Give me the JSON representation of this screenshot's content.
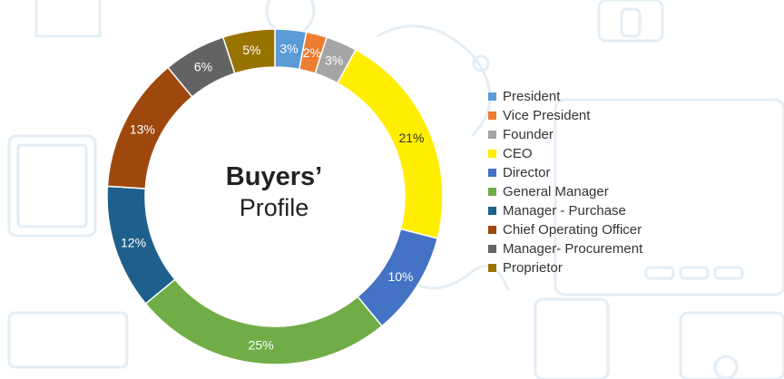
{
  "chart_data": {
    "type": "pie",
    "donut": true,
    "title": "Buyers’",
    "subtitle": "Profile",
    "categories": [
      "President",
      "Vice President",
      "Founder",
      "CEO",
      "Director",
      "General Manager",
      "Manager - Purchase",
      "Chief Operating Officer",
      "Manager- Procurement",
      "Proprietor"
    ],
    "values": [
      3,
      2,
      3,
      21,
      10,
      25,
      12,
      13,
      6,
      5
    ],
    "labels": [
      "3%",
      "2%",
      "3%",
      "21%",
      "10%",
      "25%",
      "12%",
      "13%",
      "6%",
      "5%"
    ],
    "colors": [
      "#5b9bd5",
      "#ed7d31",
      "#a5a5a5",
      "#ffee00",
      "#4472c4",
      "#70ad47",
      "#1f5f8b",
      "#9e480e",
      "#636363",
      "#997300"
    ],
    "label_colors": [
      "#ffffff",
      "#ffffff",
      "#ffffff",
      "#333333",
      "#ffffff",
      "#ffffff",
      "#ffffff",
      "#ffffff",
      "#ffffff",
      "#ffffff"
    ],
    "legend_position": "right"
  }
}
